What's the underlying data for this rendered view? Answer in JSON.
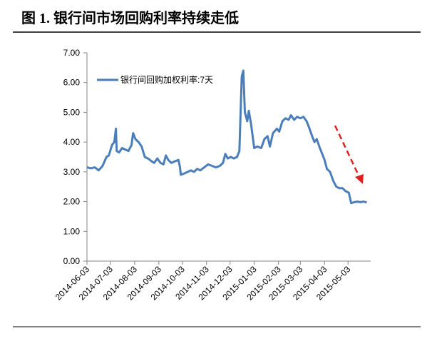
{
  "chart_data": {
    "type": "line",
    "title": "图 1. 银行间市场回购利率持续走低",
    "x": [
      "2014-06-03",
      "2014-06-08",
      "2014-06-13",
      "2014-06-18",
      "2014-06-23",
      "2014-06-28",
      "2014-07-01",
      "2014-07-05",
      "2014-07-08",
      "2014-07-10",
      "2014-07-11",
      "2014-07-14",
      "2014-07-18",
      "2014-07-22",
      "2014-07-26",
      "2014-07-30",
      "2014-08-01",
      "2014-08-04",
      "2014-08-08",
      "2014-08-12",
      "2014-08-16",
      "2014-08-20",
      "2014-08-25",
      "2014-08-28",
      "2014-09-01",
      "2014-09-05",
      "2014-09-09",
      "2014-09-12",
      "2014-09-15",
      "2014-09-19",
      "2014-09-23",
      "2014-09-28",
      "2014-09-30",
      "2014-10-01",
      "2014-10-06",
      "2014-10-10",
      "2014-10-14",
      "2014-10-18",
      "2014-10-22",
      "2014-10-26",
      "2014-10-31",
      "2014-11-05",
      "2014-11-10",
      "2014-11-15",
      "2014-11-20",
      "2014-11-24",
      "2014-11-27",
      "2014-11-30",
      "2014-12-04",
      "2014-12-08",
      "2014-12-12",
      "2014-12-15",
      "2014-12-18",
      "2014-12-20",
      "2014-12-22",
      "2014-12-25",
      "2014-12-27",
      "2014-12-30",
      "2015-01-03",
      "2015-01-07",
      "2015-01-12",
      "2015-01-16",
      "2015-01-20",
      "2015-01-23",
      "2015-01-27",
      "2015-02-01",
      "2015-02-04",
      "2015-02-08",
      "2015-02-12",
      "2015-02-16",
      "2015-02-19",
      "2015-02-23",
      "2015-02-27",
      "2015-03-03",
      "2015-03-07",
      "2015-03-11",
      "2015-03-14",
      "2015-03-18",
      "2015-03-21",
      "2015-03-24",
      "2015-03-28",
      "2015-03-31",
      "2015-04-03",
      "2015-04-06",
      "2015-04-10",
      "2015-04-14",
      "2015-04-18",
      "2015-04-22",
      "2015-04-26",
      "2015-04-30",
      "2015-05-04",
      "2015-05-07",
      "2015-05-11",
      "2015-05-15",
      "2015-05-19",
      "2015-05-23",
      "2015-05-27"
    ],
    "series": [
      {
        "name": "银行间回购加权利率:7天",
        "color": "#4a7ebb",
        "values": [
          3.15,
          3.12,
          3.15,
          3.05,
          3.2,
          3.5,
          3.55,
          3.9,
          4.0,
          4.45,
          3.7,
          3.65,
          3.8,
          3.75,
          3.7,
          3.9,
          4.3,
          4.1,
          4.0,
          3.85,
          3.5,
          3.45,
          3.35,
          3.3,
          3.45,
          3.3,
          3.25,
          3.55,
          3.4,
          3.3,
          3.35,
          3.4,
          3.15,
          2.9,
          2.95,
          3.0,
          3.05,
          3.0,
          3.1,
          3.05,
          3.15,
          3.25,
          3.2,
          3.15,
          3.2,
          3.3,
          3.6,
          3.45,
          3.5,
          3.45,
          3.5,
          3.7,
          6.2,
          6.4,
          5.0,
          4.7,
          5.05,
          4.6,
          3.8,
          3.85,
          3.8,
          4.1,
          4.2,
          3.85,
          4.3,
          4.45,
          4.35,
          4.7,
          4.8,
          4.75,
          4.9,
          4.75,
          4.85,
          4.8,
          4.85,
          4.7,
          4.5,
          4.2,
          4.0,
          4.1,
          3.8,
          3.6,
          3.4,
          3.1,
          3.0,
          2.7,
          2.5,
          2.45,
          2.45,
          2.35,
          2.3,
          1.95,
          1.98,
          2.0,
          1.98,
          2.0,
          1.97
        ]
      }
    ],
    "xlim": [
      "2014-06-03",
      "2015-06-01"
    ],
    "xticks": [
      "2014-06-03",
      "2014-07-03",
      "2014-08-03",
      "2014-09-03",
      "2014-10-03",
      "2014-11-03",
      "2014-12-03",
      "2015-01-03",
      "2015-02-03",
      "2015-03-03",
      "2015-04-03",
      "2015-05-03"
    ],
    "ylim": [
      0,
      7
    ],
    "yticks": [
      {
        "value": 0,
        "label": "0.00"
      },
      {
        "value": 1,
        "label": "1.00"
      },
      {
        "value": 2,
        "label": "2.00"
      },
      {
        "value": 3,
        "label": "3.00"
      },
      {
        "value": 4,
        "label": "4.00"
      },
      {
        "value": 5,
        "label": "5.00"
      },
      {
        "value": 6,
        "label": "6.00"
      },
      {
        "value": 7,
        "label": "7.00"
      }
    ],
    "grid": false,
    "legend": "upper left"
  }
}
